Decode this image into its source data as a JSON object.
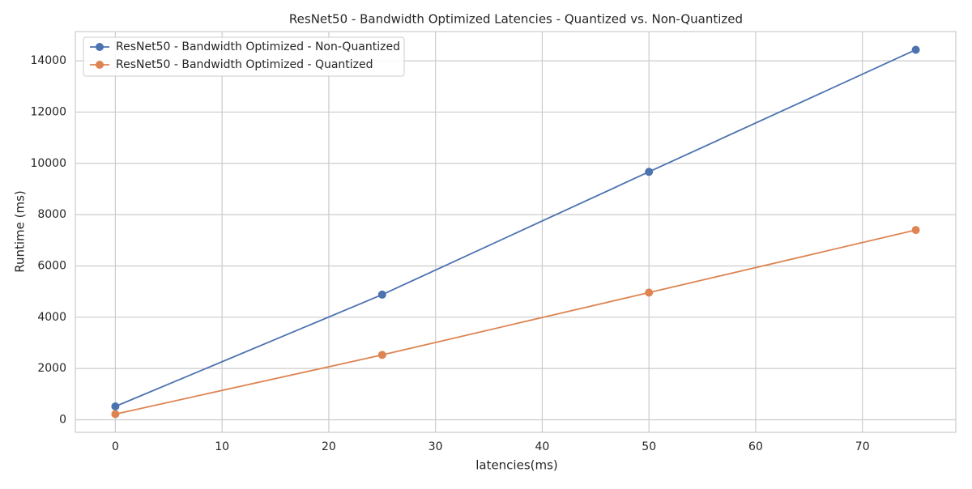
{
  "chart_data": {
    "type": "line",
    "title": "ResNet50 - Bandwidth Optimized Latencies - Quantized vs. Non-Quantized",
    "xlabel": "latencies(ms)",
    "ylabel": "Runtime (ms)",
    "x": [
      0,
      25,
      50,
      75
    ],
    "series": [
      {
        "name": "ResNet50 - Bandwidth Optimized - Non-Quantized",
        "color": "#4c72b0",
        "values": [
          520,
          4880,
          9670,
          14430
        ]
      },
      {
        "name": "ResNet50 - Bandwidth Optimized - Quantized",
        "color": "#dd8452",
        "values": [
          220,
          2530,
          4960,
          7400
        ]
      }
    ],
    "xlim": [
      -3.75,
      78.75
    ],
    "xticks": [
      0,
      10,
      20,
      30,
      40,
      50,
      60,
      70
    ],
    "ylim": [
      -490,
      15140
    ],
    "yticks": [
      0,
      2000,
      4000,
      6000,
      8000,
      10000,
      12000,
      14000
    ],
    "grid": true,
    "legend": "upper left"
  }
}
